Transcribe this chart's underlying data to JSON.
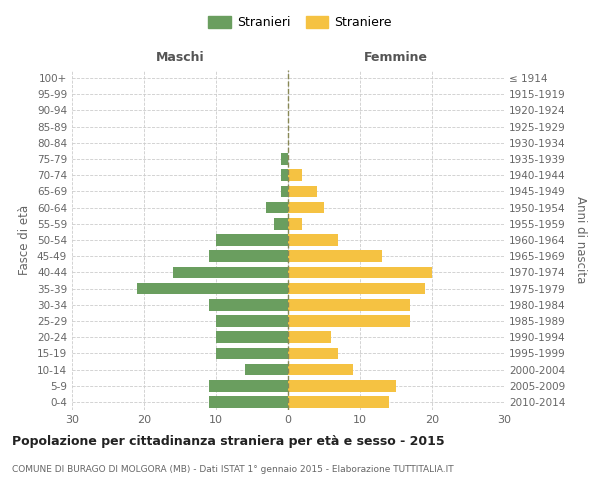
{
  "age_groups": [
    "0-4",
    "5-9",
    "10-14",
    "15-19",
    "20-24",
    "25-29",
    "30-34",
    "35-39",
    "40-44",
    "45-49",
    "50-54",
    "55-59",
    "60-64",
    "65-69",
    "70-74",
    "75-79",
    "80-84",
    "85-89",
    "90-94",
    "95-99",
    "100+"
  ],
  "birth_years": [
    "2010-2014",
    "2005-2009",
    "2000-2004",
    "1995-1999",
    "1990-1994",
    "1985-1989",
    "1980-1984",
    "1975-1979",
    "1970-1974",
    "1965-1969",
    "1960-1964",
    "1955-1959",
    "1950-1954",
    "1945-1949",
    "1940-1944",
    "1935-1939",
    "1930-1934",
    "1925-1929",
    "1920-1924",
    "1915-1919",
    "≤ 1914"
  ],
  "males": [
    11,
    11,
    6,
    10,
    10,
    10,
    11,
    21,
    16,
    11,
    10,
    2,
    3,
    1,
    1,
    1,
    0,
    0,
    0,
    0,
    0
  ],
  "females": [
    14,
    15,
    9,
    7,
    6,
    17,
    17,
    19,
    20,
    13,
    7,
    2,
    5,
    4,
    2,
    0,
    0,
    0,
    0,
    0,
    0
  ],
  "male_color": "#6a9e5f",
  "female_color": "#f5c242",
  "title": "Popolazione per cittadinanza straniera per età e sesso - 2015",
  "subtitle": "COMUNE DI BURAGO DI MOLGORA (MB) - Dati ISTAT 1° gennaio 2015 - Elaborazione TUTTITALIA.IT",
  "header_left": "Maschi",
  "header_right": "Femmine",
  "ylabel_left": "Fasce di età",
  "ylabel_right": "Anni di nascita",
  "legend_male": "Stranieri",
  "legend_female": "Straniere",
  "xlim": 30,
  "background_color": "#ffffff",
  "grid_color": "#cccccc"
}
